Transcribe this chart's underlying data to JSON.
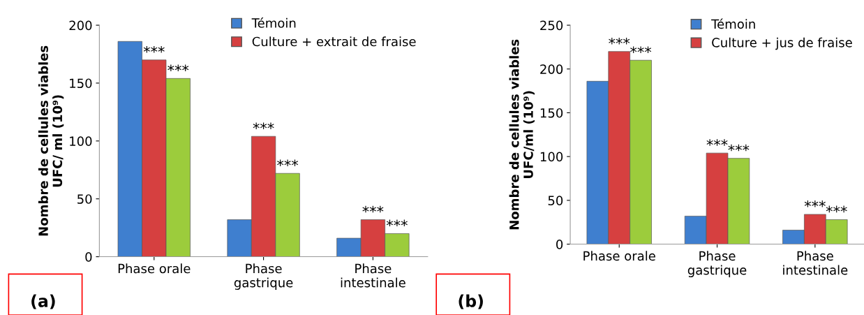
{
  "chart_data": [
    {
      "type": "bar",
      "ylabel": "Nombre de cellules viables\nUFC/ ml (10⁹)",
      "categories": [
        "Phase orale",
        "Phase\ngastrique",
        "Phase\nintestinale"
      ],
      "series": [
        {
          "name": "Témoin",
          "color": "#3f7fcf",
          "values": [
            186,
            32,
            16
          ]
        },
        {
          "name": "Culture + extrait de fraise",
          "color": "#d64040",
          "values": [
            170,
            104,
            32
          ]
        },
        {
          "color": "#9ccc3c",
          "values": [
            154,
            72,
            20
          ]
        }
      ],
      "ylim": [
        0,
        200
      ],
      "yticks": [
        0,
        50,
        100,
        150,
        200
      ],
      "legend": "top right",
      "grid": false,
      "annotations": [
        "***",
        "***",
        "***",
        "***",
        "***",
        "***",
        "(a)"
      ]
    },
    {
      "type": "bar",
      "ylabel": "Nombre de cellules viables\nUFC/ml (10⁹)",
      "categories": [
        "Phase orale",
        "Phase\ngastrique",
        "Phase\nintestinale"
      ],
      "series": [
        {
          "name": "Témoin",
          "color": "#3f7fcf",
          "values": [
            186,
            32,
            16
          ]
        },
        {
          "name": "Culture + jus de fraise",
          "color": "#d64040",
          "values": [
            220,
            104,
            34
          ]
        },
        {
          "color": "#9ccc3c",
          "values": [
            210,
            98,
            28
          ]
        }
      ],
      "ylim": [
        0,
        250
      ],
      "yticks": [
        0,
        50,
        100,
        150,
        200,
        250
      ],
      "legend": "top right",
      "grid": false,
      "annotations": [
        "***",
        "***",
        "***",
        "***",
        "***",
        "***",
        "(b)"
      ]
    }
  ]
}
